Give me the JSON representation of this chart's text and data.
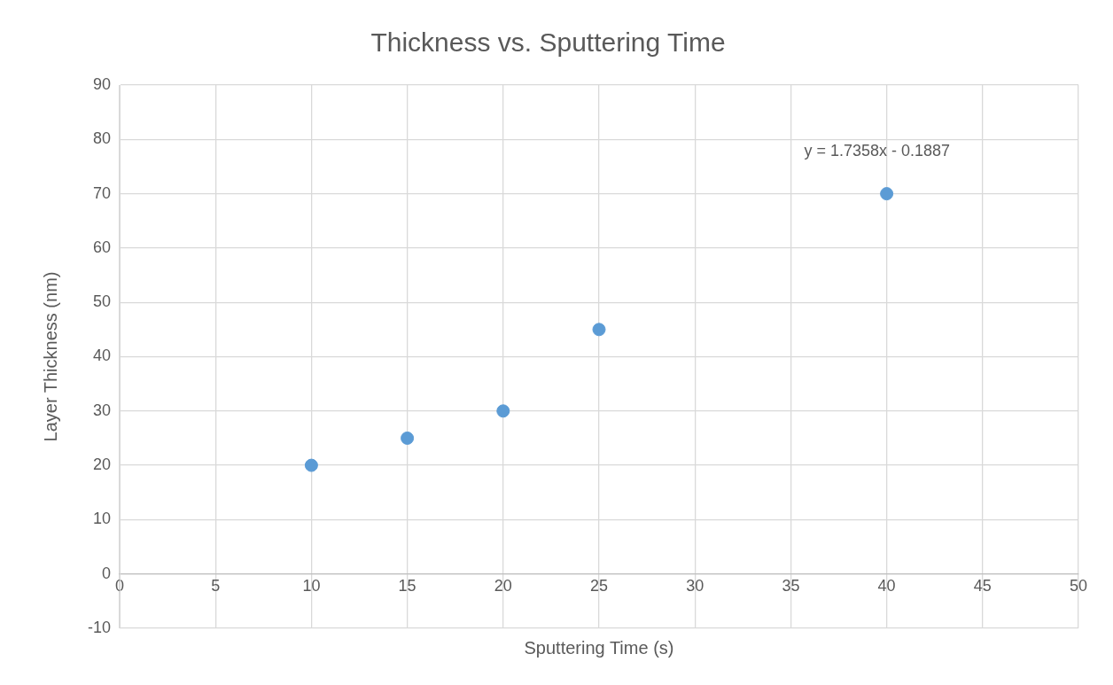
{
  "chart_data": {
    "type": "scatter",
    "title": "Thickness vs. Sputtering Time",
    "xlabel": "Sputtering Time (s)",
    "ylabel": "Layer Thickness (nm)",
    "x": [
      10,
      15,
      20,
      25,
      40
    ],
    "series": [
      {
        "color": "#5b9bd5",
        "values": [
          20,
          25,
          30,
          45,
          70
        ]
      }
    ],
    "xlim": [
      0,
      50
    ],
    "xticks": [
      0,
      5,
      10,
      15,
      20,
      25,
      30,
      35,
      40,
      45,
      50
    ],
    "ylim": [
      -10,
      90
    ],
    "yticks": [
      -10,
      0,
      10,
      20,
      30,
      40,
      50,
      60,
      70,
      80,
      90
    ],
    "grid": true,
    "legend": false,
    "marker": "circle",
    "annotations": [
      "y = 1.7358x - 0.1887"
    ]
  }
}
